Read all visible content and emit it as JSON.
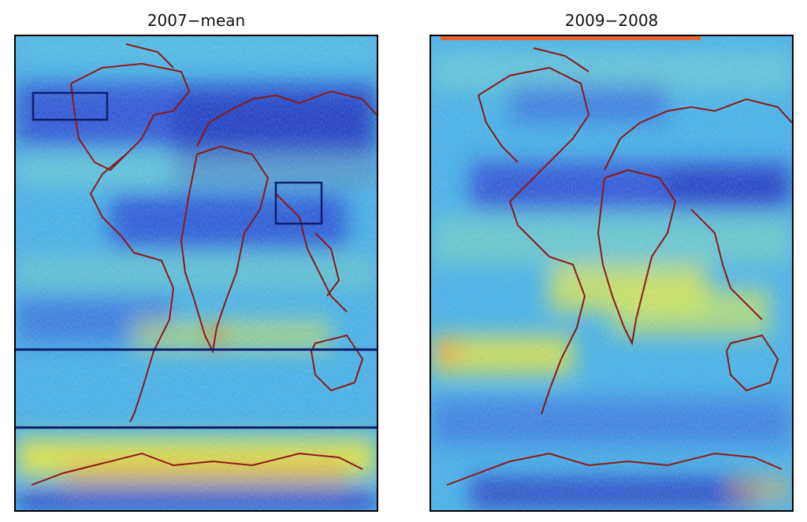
{
  "panels": [
    {
      "title": "2007−mean",
      "colors": {
        "base": "#3fb3f0",
        "low": "#1c3fd8",
        "high": "#f0ee3a",
        "hot": "#e8461a",
        "coast": "#8b1a1a",
        "overlay": "#0e1f6e"
      }
    },
    {
      "title": "2009−2008",
      "colors": {
        "base": "#3fb3f0",
        "low": "#1c3fd8",
        "high": "#f0ee3a",
        "hot": "#e8461a",
        "coast": "#8b1a1a",
        "topbar": "#e8642a"
      }
    }
  ]
}
